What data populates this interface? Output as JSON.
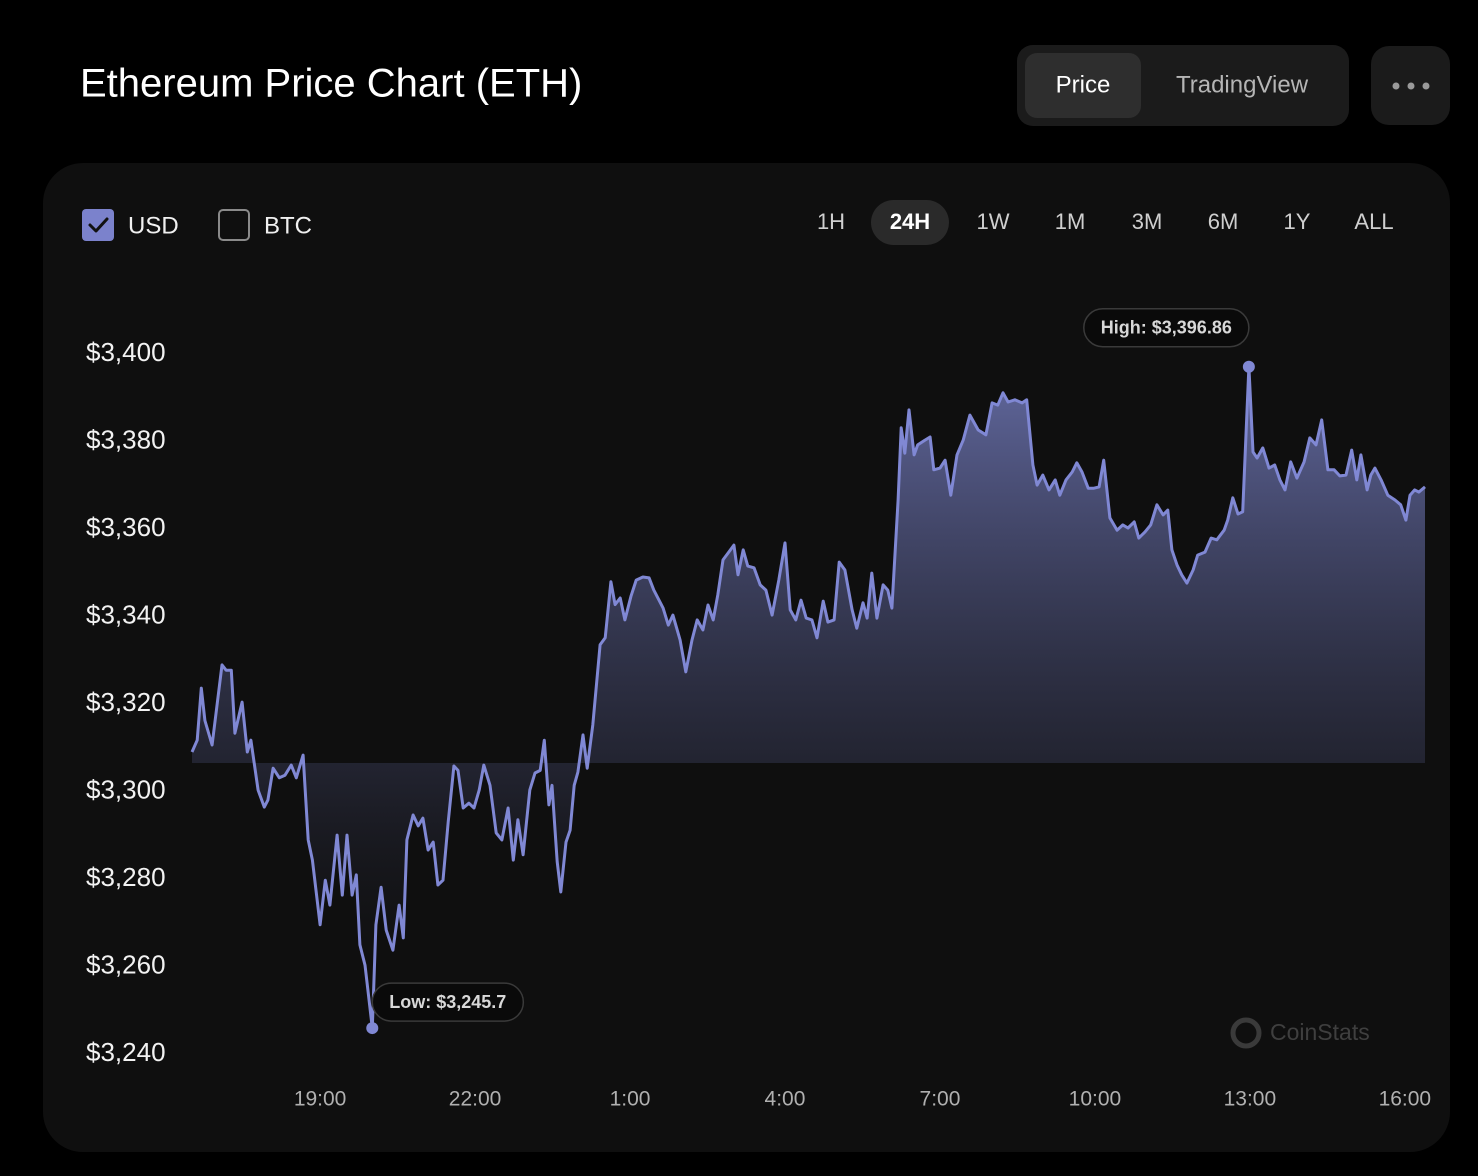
{
  "header": {
    "title": "Ethereum Price Chart (ETH)"
  },
  "controls": {
    "views": [
      "Price",
      "TradingView"
    ],
    "active_view": 0,
    "currencies": [
      {
        "label": "USD",
        "checked": true
      },
      {
        "label": "BTC",
        "checked": false
      }
    ],
    "ranges": [
      "1H",
      "24H",
      "1W",
      "1M",
      "3M",
      "6M",
      "1Y",
      "ALL"
    ],
    "active_range": 1,
    "watermark": "CoinStats"
  },
  "chart_data": {
    "type": "area",
    "color": "#8088d4",
    "x": [
      16.52,
      16.62,
      16.7,
      16.77,
      16.91,
      17.1,
      17.18,
      17.28,
      17.35,
      17.49,
      17.59,
      17.66,
      17.8,
      17.92,
      17.99,
      18.09,
      18.21,
      18.32,
      18.44,
      18.54,
      18.67,
      18.77,
      18.85,
      19.0,
      19.1,
      19.19,
      19.33,
      19.43,
      19.52,
      19.62,
      19.7,
      19.77,
      19.87,
      20.01,
      20.08,
      20.18,
      20.28,
      20.41,
      20.53,
      20.61,
      20.68,
      20.8,
      20.9,
      20.99,
      21.09,
      21.19,
      21.28,
      21.38,
      21.48,
      21.59,
      21.67,
      21.77,
      21.88,
      21.98,
      22.08,
      22.17,
      22.29,
      22.41,
      22.52,
      22.64,
      22.74,
      22.83,
      22.93,
      23.06,
      23.16,
      23.26,
      23.34,
      23.43,
      23.49,
      23.59,
      23.66,
      23.76,
      23.84,
      23.92,
      23.99,
      24.09,
      24.17,
      24.28,
      24.42,
      24.52,
      24.63,
      24.71,
      24.81,
      24.9,
      25.02,
      25.12,
      25.25,
      25.37,
      25.46,
      25.64,
      25.74,
      25.83,
      25.97,
      26.08,
      26.2,
      26.3,
      26.41,
      26.51,
      26.61,
      26.7,
      26.8,
      26.9,
      27.01,
      27.09,
      27.19,
      27.28,
      27.4,
      27.52,
      27.63,
      27.75,
      27.88,
      28.0,
      28.1,
      28.21,
      28.31,
      28.41,
      28.52,
      28.62,
      28.74,
      28.83,
      28.95,
      29.05,
      29.16,
      29.3,
      29.39,
      29.51,
      29.59,
      29.68,
      29.78,
      29.9,
      29.99,
      30.07,
      30.19,
      30.25,
      30.32,
      30.4,
      30.5,
      30.57,
      30.71,
      30.81,
      30.88,
      31.0,
      31.1,
      31.21,
      31.33,
      31.45,
      31.58,
      31.74,
      31.89,
      32.01,
      32.12,
      32.22,
      32.32,
      32.45,
      32.59,
      32.68,
      32.8,
      32.88,
      32.99,
      33.11,
      33.23,
      33.32,
      33.44,
      33.56,
      33.65,
      33.75,
      33.87,
      33.98,
      34.08,
      34.17,
      34.29,
      34.43,
      34.54,
      34.64,
      34.76,
      34.85,
      34.97,
      35.08,
      35.2,
      35.32,
      35.41,
      35.49,
      35.59,
      35.68,
      35.78,
      35.9,
      35.99,
      36.13,
      36.25,
      36.36,
      36.5,
      36.57,
      36.67,
      36.77,
      36.86,
      36.98,
      37.06,
      37.14,
      37.25,
      37.37,
      37.48,
      37.58,
      37.68,
      37.79,
      37.91,
      38.05,
      38.16,
      38.28,
      38.39,
      38.51,
      38.63,
      38.74,
      38.86,
      38.97,
      39.07,
      39.15,
      39.27,
      39.34,
      39.42,
      39.54,
      39.67,
      39.81,
      39.92,
      40.02,
      40.1,
      40.19,
      40.27,
      40.39
    ],
    "values": [
      3308.8,
      3311.5,
      3323.4,
      3316,
      3310.4,
      3328.7,
      3327.5,
      3327.5,
      3313.1,
      3320.2,
      3308.8,
      3311.5,
      3300.1,
      3296.2,
      3297.8,
      3305.1,
      3302.9,
      3303.5,
      3305.8,
      3302.9,
      3308.1,
      3288.7,
      3284.1,
      3269.3,
      3279.5,
      3273.8,
      3289.8,
      3276.1,
      3289.8,
      3276.1,
      3280.7,
      3264.7,
      3260.1,
      3245.7,
      3269.3,
      3277.9,
      3268.1,
      3263.5,
      3273.8,
      3266.3,
      3288.7,
      3294.4,
      3291.9,
      3293.7,
      3286.4,
      3288.2,
      3278.4,
      3279.5,
      3292.8,
      3305.6,
      3304.6,
      3296,
      3297.1,
      3296,
      3300.1,
      3305.8,
      3301.2,
      3290.3,
      3288.7,
      3296,
      3284.1,
      3293.3,
      3285.3,
      3300.1,
      3304,
      3304.6,
      3311.5,
      3296.7,
      3301.2,
      3283.7,
      3276.8,
      3288.2,
      3290.9,
      3301.2,
      3304.2,
      3312.7,
      3305.1,
      3315,
      3333.3,
      3334.9,
      3347.7,
      3342.5,
      3344,
      3339,
      3344.5,
      3348.1,
      3348.8,
      3348.6,
      3345.8,
      3341.7,
      3337.8,
      3340.1,
      3334.4,
      3327.1,
      3334.4,
      3339,
      3336.7,
      3342.4,
      3339,
      3344.7,
      3352.7,
      3354.3,
      3356.1,
      3349.3,
      3355,
      3351.3,
      3350.9,
      3347,
      3345.8,
      3340.1,
      3348.1,
      3356.6,
      3341.3,
      3339,
      3343.5,
      3339.4,
      3339,
      3334.9,
      3343.3,
      3338.5,
      3339,
      3352.2,
      3350.4,
      3341.3,
      3337.1,
      3342.9,
      3339.4,
      3349.7,
      3339.4,
      3347,
      3345.8,
      3341.7,
      3366.4,
      3382.9,
      3377.1,
      3387,
      3376.7,
      3379,
      3380.1,
      3380.8,
      3373.3,
      3373.7,
      3375.5,
      3367.5,
      3376.7,
      3380.1,
      3385.8,
      3382.4,
      3381.3,
      3388.6,
      3388.1,
      3390.9,
      3388.8,
      3389.3,
      3388.6,
      3389.3,
      3374.4,
      3369.8,
      3372.1,
      3368.7,
      3371,
      3367.5,
      3371,
      3372.8,
      3374.9,
      3372.8,
      3369.1,
      3369.1,
      3369.4,
      3375.5,
      3362.3,
      3359.5,
      3360.7,
      3360,
      3361.4,
      3357.7,
      3359.1,
      3360.7,
      3365.3,
      3363,
      3364.1,
      3355,
      3351.5,
      3349.3,
      3347.4,
      3350.4,
      3353.8,
      3354.5,
      3357.7,
      3357.3,
      3359.5,
      3361.8,
      3366.9,
      3363.2,
      3363.7,
      3396.86,
      3377.4,
      3376,
      3378.3,
      3373.7,
      3374.4,
      3371,
      3368.7,
      3375.1,
      3371.4,
      3375.1,
      3380.6,
      3379,
      3384.7,
      3373.3,
      3373.3,
      3371.9,
      3372.1,
      3377.8,
      3371,
      3376.7,
      3368.7,
      3372.1,
      3373.7,
      3371,
      3367.5,
      3366.4,
      3365.3,
      3361.8,
      3367.5,
      3368.7,
      3368.2,
      3369.4
    ],
    "xlim": [
      16.52,
      40.39
    ],
    "xticks": [
      {
        "value": 19,
        "label": "19:00"
      },
      {
        "value": 22,
        "label": "22:00"
      },
      {
        "value": 25,
        "label": "1:00"
      },
      {
        "value": 28,
        "label": "4:00"
      },
      {
        "value": 31,
        "label": "7:00"
      },
      {
        "value": 34,
        "label": "10:00"
      },
      {
        "value": 37,
        "label": "13:00"
      },
      {
        "value": 40,
        "label": "16:00"
      }
    ],
    "ylim": [
      3240,
      3400
    ],
    "yticks": [
      {
        "value": 3240,
        "label": "$3,240"
      },
      {
        "value": 3260,
        "label": "$3,260"
      },
      {
        "value": 3280,
        "label": "$3,280"
      },
      {
        "value": 3300,
        "label": "$3,300"
      },
      {
        "value": 3320,
        "label": "$3,320"
      },
      {
        "value": 3340,
        "label": "$3,340"
      },
      {
        "value": 3360,
        "label": "$3,360"
      },
      {
        "value": 3380,
        "label": "$3,380"
      },
      {
        "value": 3400,
        "label": "$3,400"
      }
    ],
    "grid": false,
    "annotations": [
      {
        "text": "High: $3,396.86",
        "x": 36.98,
        "y": 3396.86,
        "side": "left"
      },
      {
        "text": "Low: $3,245.7",
        "x": 20.01,
        "y": 3245.7,
        "side": "right"
      }
    ]
  }
}
